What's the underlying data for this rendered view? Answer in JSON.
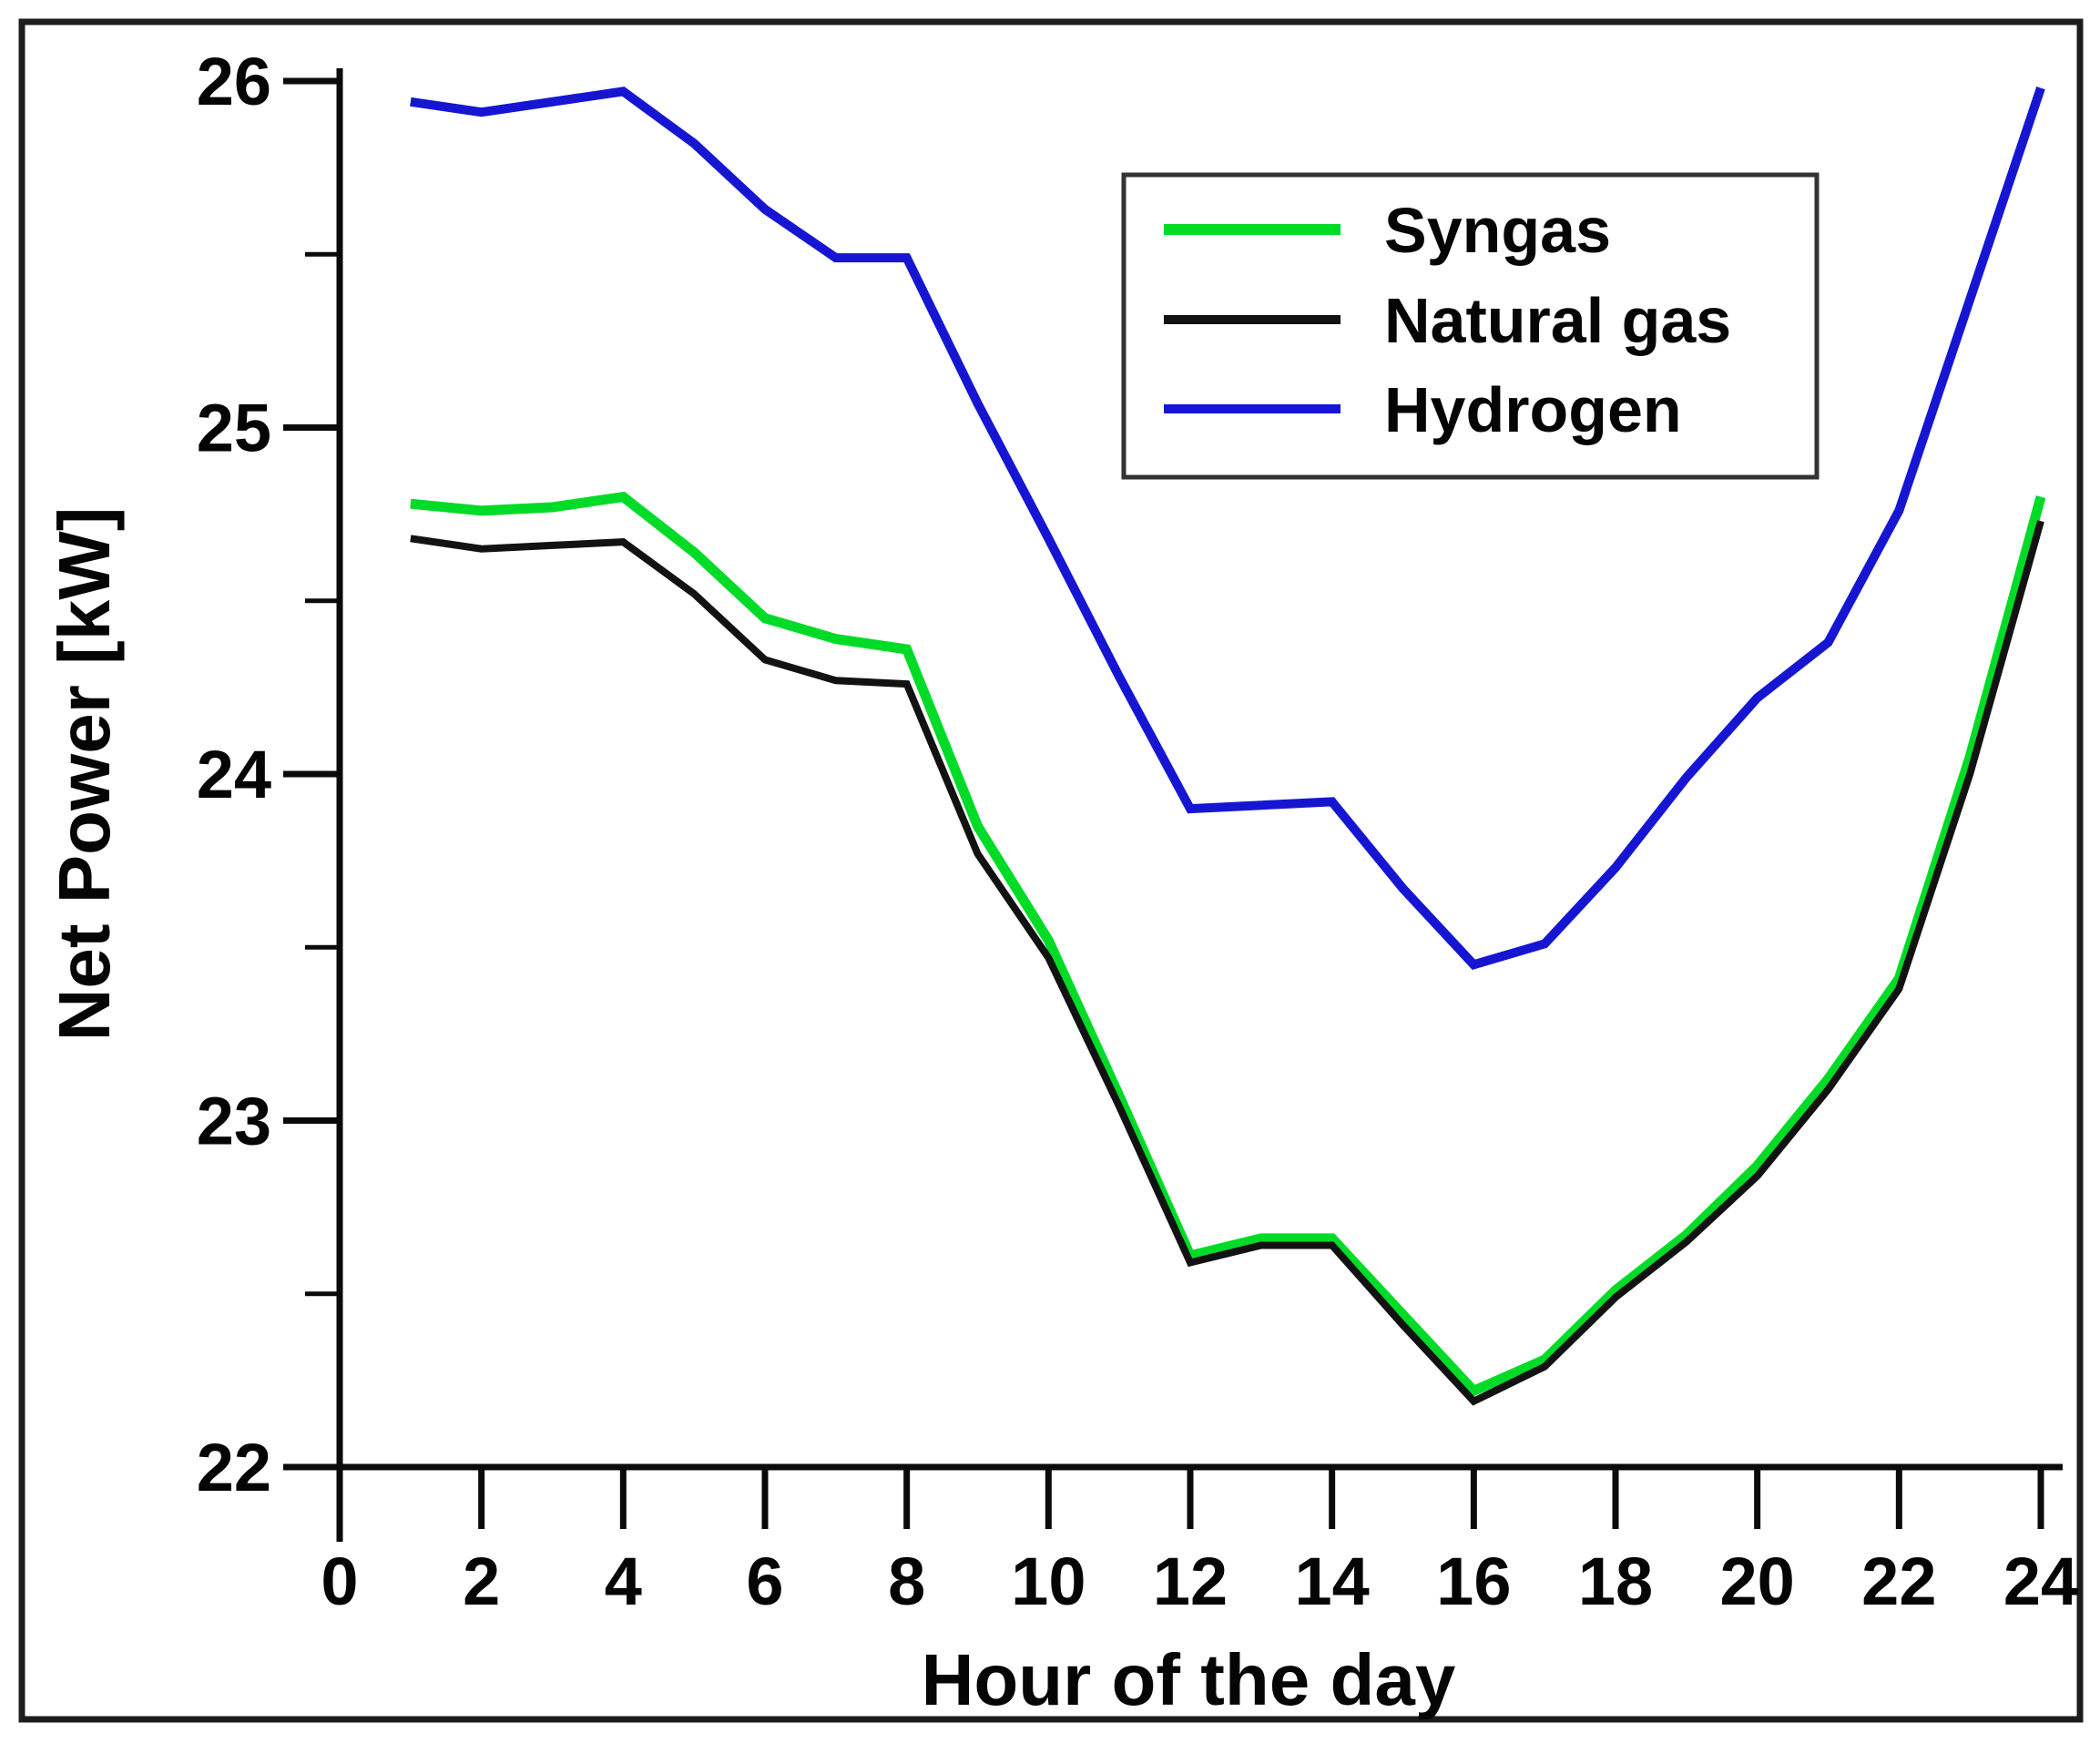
{
  "figure": {
    "background": "#ffffff",
    "border_color": "#1d1d1d",
    "axis_color": "#0a0a0a",
    "legend_border_color": "#333333",
    "text_color": "#050505"
  },
  "chart_data": {
    "type": "line",
    "title": "",
    "xlabel": "Hour of the day",
    "ylabel": "Net Power [kW]",
    "xlim": [
      0,
      24
    ],
    "ylim": [
      22,
      26
    ],
    "grid": false,
    "legend_position": "upper right inside",
    "x_ticks": [
      0,
      2,
      4,
      6,
      8,
      10,
      12,
      14,
      16,
      18,
      20,
      22,
      24
    ],
    "y_ticks_major": [
      22,
      23,
      24,
      25,
      26
    ],
    "y_ticks_minor": [
      22.5,
      23.5,
      24.5,
      25.5
    ],
    "x": [
      1,
      2,
      3,
      4,
      5,
      6,
      7,
      8,
      9,
      10,
      11,
      12,
      13,
      14,
      15,
      16,
      17,
      18,
      19,
      20,
      21,
      22,
      23,
      24
    ],
    "series": [
      {
        "name": "Syngas",
        "color": "#00db28",
        "stroke_width": 11,
        "values": [
          24.78,
          24.76,
          24.77,
          24.8,
          24.64,
          24.45,
          24.39,
          24.36,
          23.85,
          23.52,
          23.07,
          22.61,
          22.66,
          22.66,
          22.44,
          22.22,
          22.31,
          22.51,
          22.67,
          22.87,
          23.12,
          23.41,
          24.05,
          24.8
        ]
      },
      {
        "name": "Natural gas",
        "color": "#121212",
        "stroke_width": 8,
        "values": [
          24.68,
          24.65,
          24.66,
          24.67,
          24.52,
          24.33,
          24.27,
          24.26,
          23.77,
          23.47,
          23.04,
          22.59,
          22.64,
          22.64,
          22.41,
          22.19,
          22.29,
          22.49,
          22.65,
          22.84,
          23.09,
          23.38,
          24.0,
          24.73
        ]
      },
      {
        "name": "Hydrogen",
        "color": "#1616d2",
        "stroke_width": 10,
        "values": [
          25.94,
          25.91,
          25.94,
          25.97,
          25.82,
          25.63,
          25.49,
          25.49,
          25.07,
          24.68,
          24.28,
          23.9,
          23.91,
          23.92,
          23.67,
          23.45,
          23.51,
          23.73,
          23.99,
          24.22,
          24.38,
          24.76,
          25.37,
          25.98
        ]
      }
    ]
  }
}
